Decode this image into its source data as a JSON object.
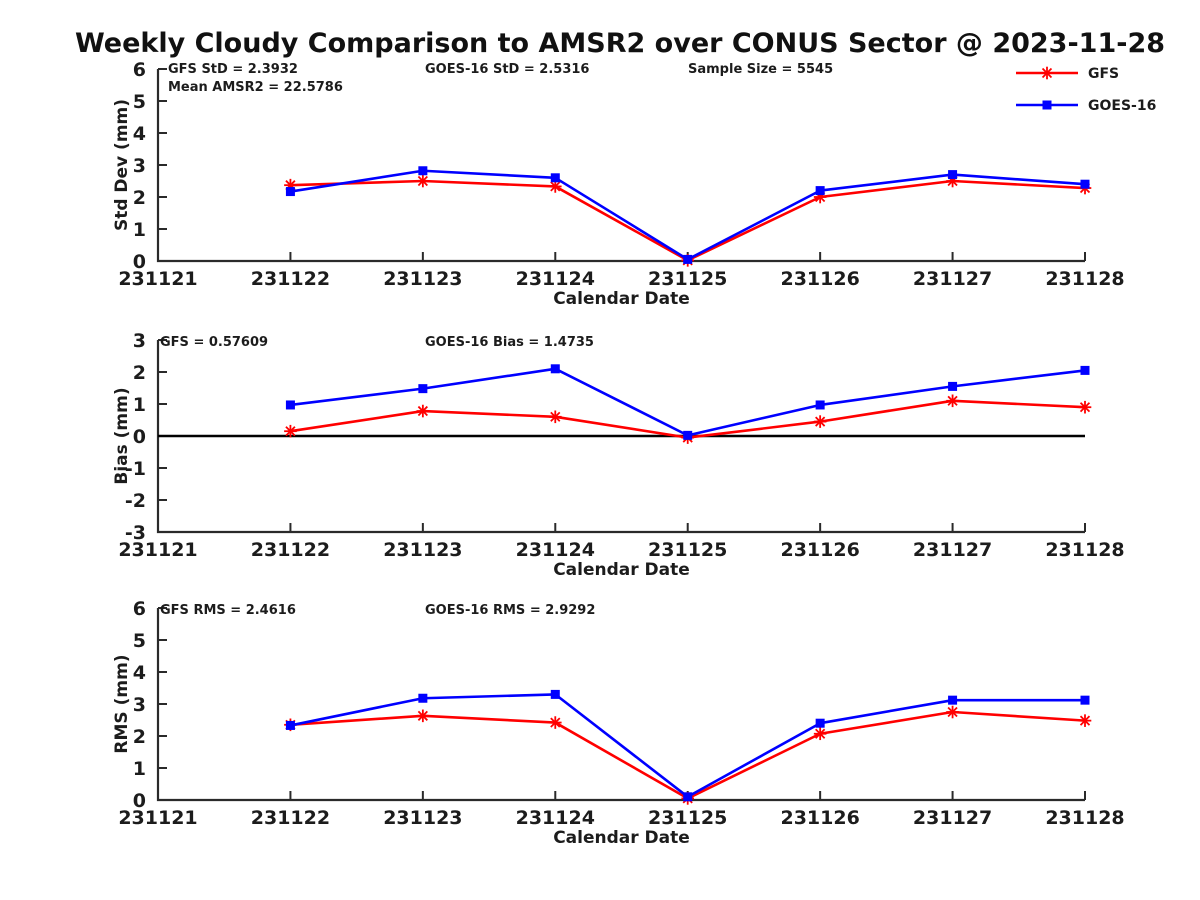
{
  "title": "Weekly Cloudy Comparison to AMSR2 over CONUS Sector @ 2023-11-28",
  "colors": {
    "gfs": "#ff0000",
    "goes16": "#0000ff",
    "axis": "#2a2a2a",
    "text": "#1c1c1c",
    "zero": "#000000",
    "background": "#ffffff"
  },
  "legend": {
    "items": [
      {
        "label": "GFS",
        "color": "#ff0000",
        "marker": "asterisk"
      },
      {
        "label": "GOES-16",
        "color": "#0000ff",
        "marker": "square"
      }
    ]
  },
  "chart_data": [
    {
      "id": "std-dev",
      "type": "line",
      "ylabel": "Std Dev (mm)",
      "xlabel": "Calendar Date",
      "ylim": [
        0,
        6
      ],
      "y_ticks": [
        0,
        1,
        2,
        3,
        4,
        5,
        6
      ],
      "x_ticks": [
        "231121",
        "231122",
        "231123",
        "231124",
        "231125",
        "231126",
        "231127",
        "231128"
      ],
      "annotations": [
        {
          "text": "GFS StD = 2.3932",
          "col": 0,
          "row": 0
        },
        {
          "text": "Mean AMSR2 = 22.5786",
          "col": 0,
          "row": 1
        },
        {
          "text": "GOES-16 StD = 2.5316",
          "col": 1,
          "row": 0
        },
        {
          "text": "Sample Size = 5545",
          "col": 2,
          "row": 0
        }
      ],
      "zero_line": false,
      "dates": [
        "231122",
        "231123",
        "231124",
        "231125",
        "231126",
        "231127",
        "231128"
      ],
      "series": [
        {
          "name": "GFS",
          "color": "#ff0000",
          "marker": "asterisk",
          "values": [
            2.37,
            2.5,
            2.33,
            0.02,
            2.0,
            2.5,
            2.28
          ]
        },
        {
          "name": "GOES-16",
          "color": "#0000ff",
          "marker": "square",
          "values": [
            2.17,
            2.82,
            2.6,
            0.05,
            2.2,
            2.7,
            2.4
          ]
        }
      ]
    },
    {
      "id": "bias",
      "type": "line",
      "ylabel": "Bias (mm)",
      "xlabel": "Calendar Date",
      "ylim": [
        -3,
        3
      ],
      "y_ticks": [
        -3,
        -2,
        -1,
        0,
        1,
        2,
        3
      ],
      "x_ticks": [
        "231121",
        "231122",
        "231123",
        "231124",
        "231125",
        "231126",
        "231127",
        "231128"
      ],
      "annotations": [
        {
          "text": "GFS = 0.57609",
          "col": 0,
          "row": 0
        },
        {
          "text": "GOES-16 Bias  = 1.4735",
          "col": 1,
          "row": 0
        }
      ],
      "zero_line": true,
      "dates": [
        "231122",
        "231123",
        "231124",
        "231125",
        "231126",
        "231127",
        "231128"
      ],
      "series": [
        {
          "name": "GFS",
          "color": "#ff0000",
          "marker": "asterisk",
          "values": [
            0.15,
            0.78,
            0.6,
            -0.05,
            0.45,
            1.1,
            0.9
          ]
        },
        {
          "name": "GOES-16",
          "color": "#0000ff",
          "marker": "square",
          "values": [
            0.97,
            1.48,
            2.1,
            0.02,
            0.97,
            1.55,
            2.05
          ]
        }
      ]
    },
    {
      "id": "rms",
      "type": "line",
      "ylabel": "RMS (mm)",
      "xlabel": "Calendar Date",
      "ylim": [
        0,
        6
      ],
      "y_ticks": [
        0,
        1,
        2,
        3,
        4,
        5,
        6
      ],
      "x_ticks": [
        "231121",
        "231122",
        "231123",
        "231124",
        "231125",
        "231126",
        "231127",
        "231128"
      ],
      "annotations": [
        {
          "text": "GFS RMS = 2.4616",
          "col": 0,
          "row": 0
        },
        {
          "text": "GOES-16 RMS = 2.9292",
          "col": 1,
          "row": 0
        }
      ],
      "zero_line": false,
      "dates": [
        "231122",
        "231123",
        "231124",
        "231125",
        "231126",
        "231127",
        "231128"
      ],
      "series": [
        {
          "name": "GFS",
          "color": "#ff0000",
          "marker": "asterisk",
          "values": [
            2.35,
            2.63,
            2.42,
            0.05,
            2.07,
            2.75,
            2.48
          ]
        },
        {
          "name": "GOES-16",
          "color": "#0000ff",
          "marker": "square",
          "values": [
            2.33,
            3.18,
            3.3,
            0.1,
            2.4,
            3.12,
            3.12
          ]
        }
      ]
    }
  ]
}
